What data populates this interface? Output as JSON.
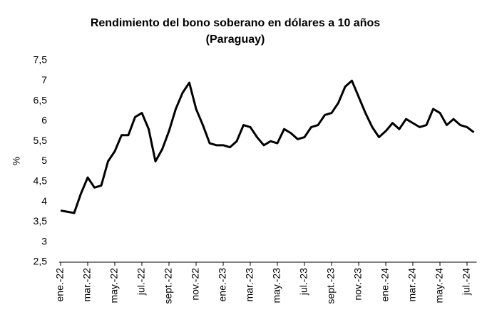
{
  "chart_data": {
    "type": "line",
    "title": "Rendimiento del bono soberano en dólares a 10 años",
    "subtitle": "(Paraguay)",
    "y_label": "%",
    "categories": [
      "ene.-22",
      null,
      null,
      null,
      "mar.-22",
      null,
      null,
      null,
      "may.-22",
      null,
      null,
      null,
      "jul.-22",
      null,
      null,
      null,
      "sept.-22",
      null,
      null,
      null,
      "nov.-22",
      null,
      null,
      null,
      "ene.-23",
      null,
      null,
      null,
      "mar.-23",
      null,
      null,
      null,
      "may.-23",
      null,
      null,
      null,
      "jul.-23",
      null,
      null,
      null,
      "sept.-23",
      null,
      null,
      null,
      "nov.-23",
      null,
      null,
      null,
      "ene.-24",
      null,
      null,
      null,
      "mar.-24",
      null,
      null,
      null,
      "may.-24",
      null,
      null,
      null,
      "jul.-24",
      null
    ],
    "series": [
      {
        "name": "Rendimiento",
        "color": "#000000",
        "values": [
          3.78,
          3.75,
          3.72,
          4.2,
          4.6,
          4.35,
          4.4,
          5.0,
          5.25,
          5.65,
          5.65,
          6.1,
          6.2,
          5.8,
          5.0,
          5.3,
          5.75,
          6.3,
          6.7,
          6.95,
          6.3,
          5.9,
          5.45,
          5.4,
          5.4,
          5.35,
          5.5,
          5.9,
          5.85,
          5.6,
          5.4,
          5.5,
          5.45,
          5.8,
          5.7,
          5.55,
          5.6,
          5.85,
          5.9,
          6.15,
          6.2,
          6.45,
          6.85,
          7.0,
          6.6,
          6.2,
          5.85,
          5.6,
          5.75,
          5.95,
          5.8,
          6.05,
          5.95,
          5.85,
          5.9,
          6.3,
          6.2,
          5.9,
          6.05,
          5.9,
          5.85,
          5.72
        ]
      }
    ],
    "ylim": [
      2.5,
      7.5
    ],
    "yticks": [
      {
        "value": 2.5,
        "label": "2,5"
      },
      3,
      {
        "value": 3.5,
        "label": "3,5"
      },
      4,
      {
        "value": 4.5,
        "label": "4,5"
      },
      5,
      {
        "value": 5.5,
        "label": "5,5"
      },
      6,
      {
        "value": 6.5,
        "label": "6,5"
      },
      7,
      {
        "value": 7.5,
        "label": "7,5"
      }
    ],
    "grid": false
  }
}
